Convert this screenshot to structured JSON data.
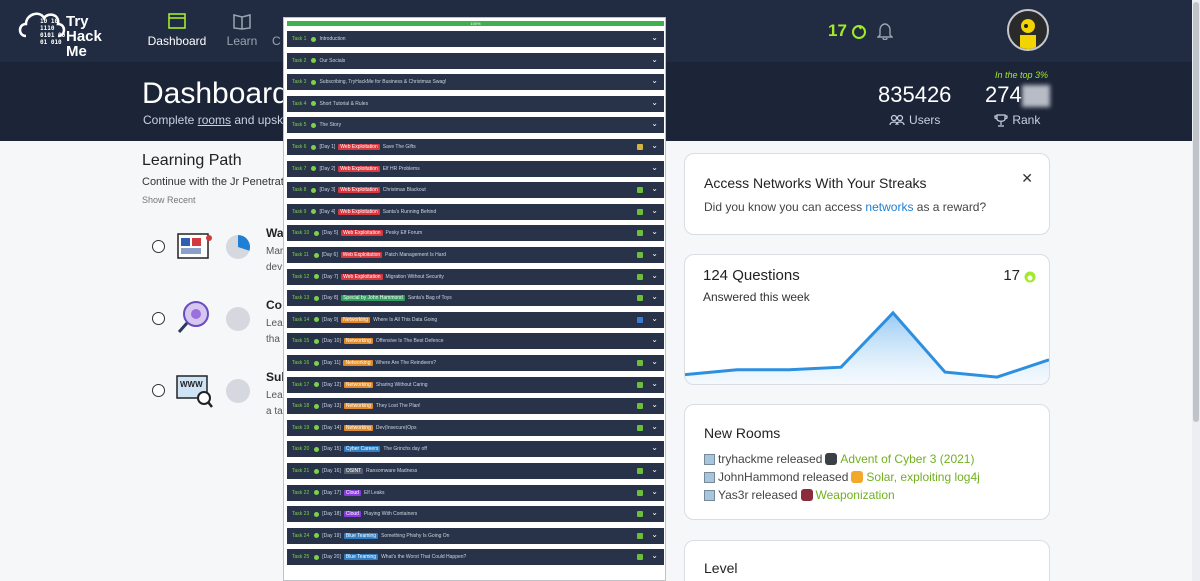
{
  "brand": {
    "name_lines": [
      "Try",
      "Hack",
      "Me"
    ],
    "bits": [
      "10  10",
      "1110",
      "0101  00",
      "  01  010"
    ]
  },
  "nav": [
    {
      "label": "Dashboard",
      "icon": "dashboard-icon",
      "active": true
    },
    {
      "label": "Learn",
      "icon": "book-icon",
      "active": false
    },
    {
      "label": "C",
      "icon": "compete-icon",
      "active": false
    }
  ],
  "header": {
    "streak": "17"
  },
  "banner": {
    "title": "Dashboard",
    "subtitle_a": "Complete ",
    "subtitle_link": "rooms",
    "subtitle_b": " and upsk",
    "users_num": "835426",
    "users_label": "Users",
    "rank_num": "274",
    "rank_label": "Rank",
    "top3": "In the top 3%"
  },
  "learning_path": {
    "title": "Learning Path",
    "subtitle": "Continue with the Jr Penetrat",
    "show_recent": "Show Recent",
    "rows": [
      {
        "name": "Wa",
        "desc_lines": [
          "Mar",
          "dev"
        ],
        "progress": 0.3
      },
      {
        "name": "Co",
        "desc_lines": [
          "Lea",
          "tha"
        ],
        "progress": 0
      },
      {
        "name": "Sub",
        "desc_lines": [
          "Lea",
          "a ta"
        ],
        "progress": 0
      }
    ]
  },
  "networks_card": {
    "title": "Access Networks With Your Streaks",
    "text_a": "Did you know you can access ",
    "link": "networks",
    "text_b": " as a reward?"
  },
  "questions_card": {
    "title": "124 Questions",
    "subtitle": "Answered this week",
    "streak": "17",
    "chart_data": {
      "type": "area",
      "values": [
        3,
        5,
        5,
        6,
        28,
        4,
        2,
        9
      ],
      "ylim": [
        0,
        32
      ],
      "color": "#2d8fe0"
    }
  },
  "new_rooms": {
    "title": "New Rooms",
    "items": [
      {
        "user": "tryhackme",
        "verb": "released",
        "room": "Advent of Cyber 3 (2021)"
      },
      {
        "user": "JohnHammond",
        "verb": "released",
        "room": "Solar, exploiting log4j"
      },
      {
        "user": "Yas3r",
        "verb": "released",
        "room": "Weaponization"
      }
    ]
  },
  "level_card": {
    "title": "Level"
  },
  "tasks_overlay": {
    "progress_label": "100%",
    "tasks": [
      {
        "num": "Task 1",
        "day": "",
        "tag": "",
        "tag_color": "",
        "title": "Introduction",
        "mark": ""
      },
      {
        "num": "Task 2",
        "day": "",
        "tag": "",
        "tag_color": "",
        "title": "Our Socials",
        "mark": ""
      },
      {
        "num": "Task 3",
        "day": "",
        "tag": "",
        "tag_color": "",
        "title": "Subscribing, TryHackMe for Business & Christmas Swag!",
        "mark": ""
      },
      {
        "num": "Task 4",
        "day": "",
        "tag": "",
        "tag_color": "",
        "title": "Short Tutorial & Rules",
        "mark": ""
      },
      {
        "num": "Task 5",
        "day": "",
        "tag": "",
        "tag_color": "",
        "title": "The Story",
        "mark": ""
      },
      {
        "num": "Task 6",
        "day": "[Day 1]",
        "tag": "Web Exploitation",
        "tag_color": "#d9363e",
        "title": "Save The Gifts",
        "mark": "#d5b340"
      },
      {
        "num": "Task 7",
        "day": "[Day 2]",
        "tag": "Web Exploitation",
        "tag_color": "#d9363e",
        "title": "Elf HR Problems",
        "mark": ""
      },
      {
        "num": "Task 8",
        "day": "[Day 3]",
        "tag": "Web Exploitation",
        "tag_color": "#d9363e",
        "title": "Christmas Blackout",
        "mark": "#6cbf3b"
      },
      {
        "num": "Task 9",
        "day": "[Day 4]",
        "tag": "Web Exploitation",
        "tag_color": "#d9363e",
        "title": "Santa's Running Behind",
        "mark": "#6cbf3b"
      },
      {
        "num": "Task 10",
        "day": "[Day 5]",
        "tag": "Web Exploitation",
        "tag_color": "#d9363e",
        "title": "Pesky Elf Forum",
        "mark": "#6cbf3b"
      },
      {
        "num": "Task 11",
        "day": "[Day 6]",
        "tag": "Web Exploitation",
        "tag_color": "#d9363e",
        "title": "Patch Management Is Hard",
        "mark": "#6cbf3b"
      },
      {
        "num": "Task 12",
        "day": "[Day 7]",
        "tag": "Web Exploitation",
        "tag_color": "#d9363e",
        "title": "Migration Without Security",
        "mark": "#6cbf3b"
      },
      {
        "num": "Task 13",
        "day": "[Day 8]",
        "tag": "Special by John Hammond",
        "tag_color": "#2e9e5b",
        "title": "Santa's Bag of Toys",
        "mark": "#6cbf3b"
      },
      {
        "num": "Task 14",
        "day": "[Day 9]",
        "tag": "Networking",
        "tag_color": "#e08a2a",
        "title": "Where Is All This Data Going",
        "mark": "#3a7bd5"
      },
      {
        "num": "Task 15",
        "day": "[Day 10]",
        "tag": "Networking",
        "tag_color": "#e08a2a",
        "title": "Offensive Is The Best Defence",
        "mark": ""
      },
      {
        "num": "Task 16",
        "day": "[Day 11]",
        "tag": "Networking",
        "tag_color": "#e08a2a",
        "title": "Where Are The Reindeers?",
        "mark": "#6cbf3b"
      },
      {
        "num": "Task 17",
        "day": "[Day 12]",
        "tag": "Networking",
        "tag_color": "#e08a2a",
        "title": "Sharing Without Caring",
        "mark": "#6cbf3b"
      },
      {
        "num": "Task 18",
        "day": "[Day 13]",
        "tag": "Networking",
        "tag_color": "#e08a2a",
        "title": "They Lost The Plan!",
        "mark": "#6cbf3b"
      },
      {
        "num": "Task 19",
        "day": "[Day 14]",
        "tag": "Networking",
        "tag_color": "#e08a2a",
        "title": "Dev(Insecure)Ops",
        "mark": "#6cbf3b"
      },
      {
        "num": "Task 20",
        "day": "[Day 15]",
        "tag": "Cyber Careers",
        "tag_color": "#2f7fc4",
        "title": "The Grinchs day off",
        "mark": ""
      },
      {
        "num": "Task 21",
        "day": "[Day 16]",
        "tag": "OSINT",
        "tag_color": "#555e6e",
        "title": "Ransomware Madness",
        "mark": "#6cbf3b"
      },
      {
        "num": "Task 22",
        "day": "[Day 17]",
        "tag": "Cloud",
        "tag_color": "#8a3ce0",
        "title": "Elf Leaks",
        "mark": "#6cbf3b"
      },
      {
        "num": "Task 23",
        "day": "[Day 18]",
        "tag": "Cloud",
        "tag_color": "#8a3ce0",
        "title": "Playing With Containers",
        "mark": "#6cbf3b"
      },
      {
        "num": "Task 24",
        "day": "[Day 19]",
        "tag": "Blue Teaming",
        "tag_color": "#2f7fc4",
        "title": "Something Phishy Is Going On",
        "mark": "#6cbf3b"
      },
      {
        "num": "Task 25",
        "day": "[Day 20]",
        "tag": "Blue Teaming",
        "tag_color": "#2f7fc4",
        "title": "What's the Worst That Could Happen?",
        "mark": "#6cbf3b"
      }
    ]
  }
}
